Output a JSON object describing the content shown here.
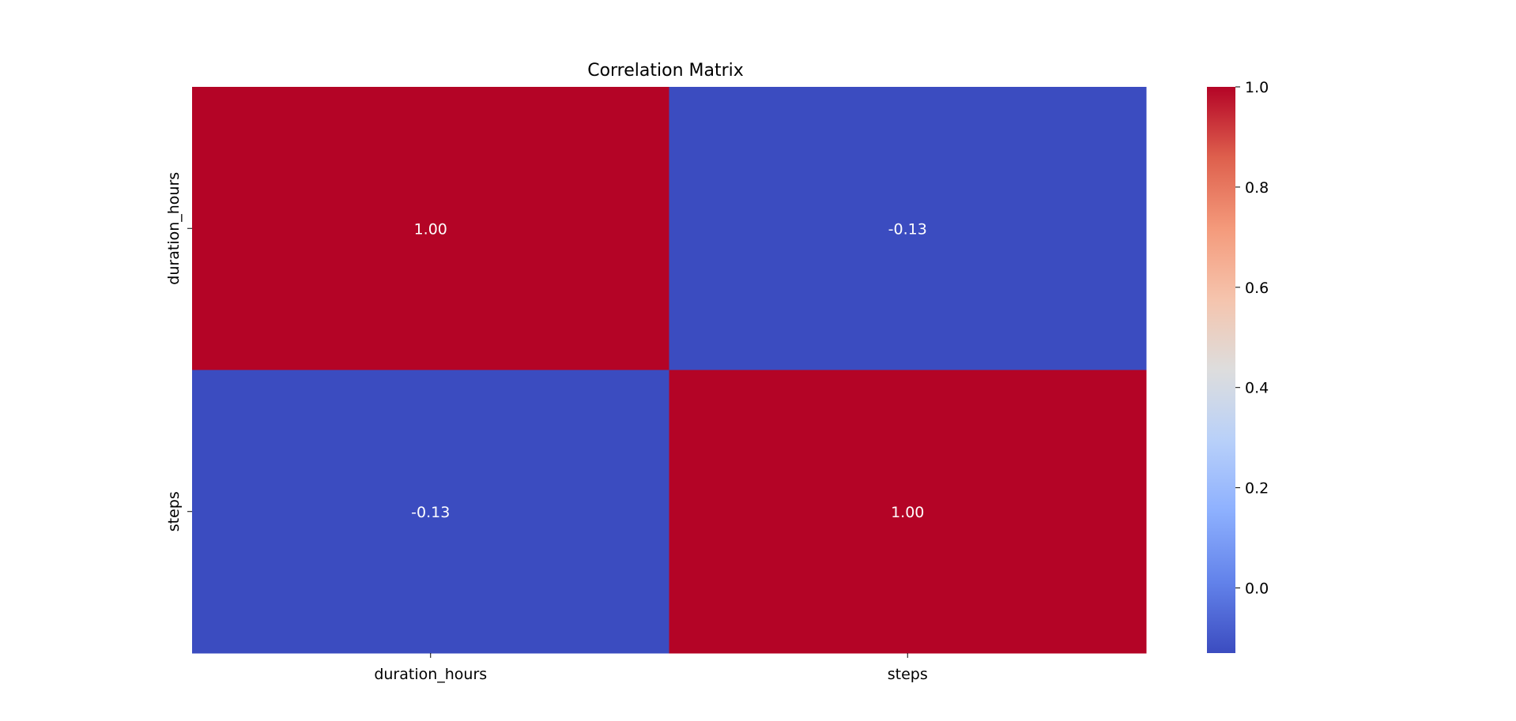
{
  "chart_data": {
    "type": "heatmap",
    "title": "Correlation Matrix",
    "x_labels": [
      "duration_hours",
      "steps"
    ],
    "y_labels": [
      "duration_hours",
      "steps"
    ],
    "matrix": [
      [
        1.0,
        -0.13
      ],
      [
        -0.13,
        1.0
      ]
    ],
    "cell_labels": [
      [
        "1.00",
        "-0.13"
      ],
      [
        "-0.13",
        "1.00"
      ]
    ],
    "colormap": "coolwarm",
    "colorbar": {
      "range": [
        -0.13,
        1.0
      ],
      "ticks": [
        0.0,
        0.2,
        0.4,
        0.6,
        0.8,
        1.0
      ],
      "tick_labels": [
        "0.0",
        "0.2",
        "0.4",
        "0.6",
        "0.8",
        "1.0"
      ]
    },
    "colors": {
      "high": "#b40426",
      "low": "#3b4cc0",
      "annotation_text": "#ffffff"
    }
  }
}
